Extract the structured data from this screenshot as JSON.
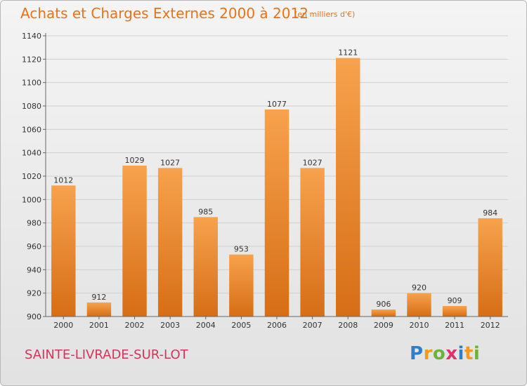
{
  "chart_data": {
    "type": "bar",
    "title": "Achats et Charges Externes 2000 à 2012",
    "subtitle": "(en milliers d'€)",
    "categories": [
      "2000",
      "2001",
      "2002",
      "2003",
      "2004",
      "2005",
      "2006",
      "2007",
      "2008",
      "2009",
      "2010",
      "2011",
      "2012"
    ],
    "values": [
      1012,
      912,
      1029,
      1027,
      985,
      953,
      1077,
      1027,
      1121,
      906,
      920,
      909,
      984
    ],
    "ylim": [
      900,
      1140
    ],
    "yticks": [
      900,
      920,
      940,
      960,
      980,
      1000,
      1020,
      1040,
      1060,
      1080,
      1100,
      1120,
      1140
    ],
    "grid": true,
    "bar_color": "#f0923a",
    "title_color": "#e8731a"
  },
  "footer": {
    "place": "SAINTE-LIVRADE-SUR-LOT",
    "place_color": "#d8335a"
  },
  "logo": {
    "letters": [
      "P",
      "r",
      "o",
      "x",
      "i",
      "t",
      "i"
    ],
    "colors": [
      "#2f7fc8",
      "#f39a1c",
      "#6bb43a",
      "#e0326a",
      "#2f7fc8",
      "#f39a1c",
      "#6bb43a"
    ]
  }
}
